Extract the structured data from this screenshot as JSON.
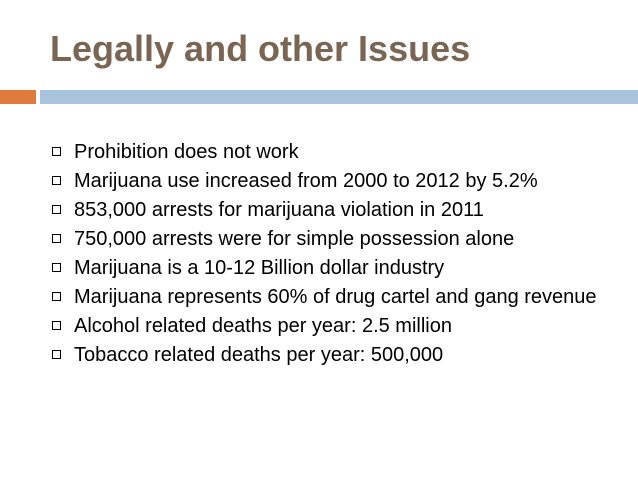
{
  "slide": {
    "title": "Legally and other Issues",
    "colors": {
      "title": "#7a6452",
      "accent_bar": "#e07a3c",
      "main_bar": "#a9c3dc"
    },
    "bullets": [
      "Prohibition does not work",
      "Marijuana use increased from 2000 to 2012 by 5.2%",
      "853,000 arrests for marijuana violation in 2011",
      "750,000 arrests were for simple possession alone",
      "Marijuana is a 10-12 Billion dollar industry",
      "Marijuana represents 60% of drug cartel and gang revenue",
      "Alcohol related deaths per year: 2.5 million",
      "Tobacco related deaths per year: 500,000"
    ]
  }
}
